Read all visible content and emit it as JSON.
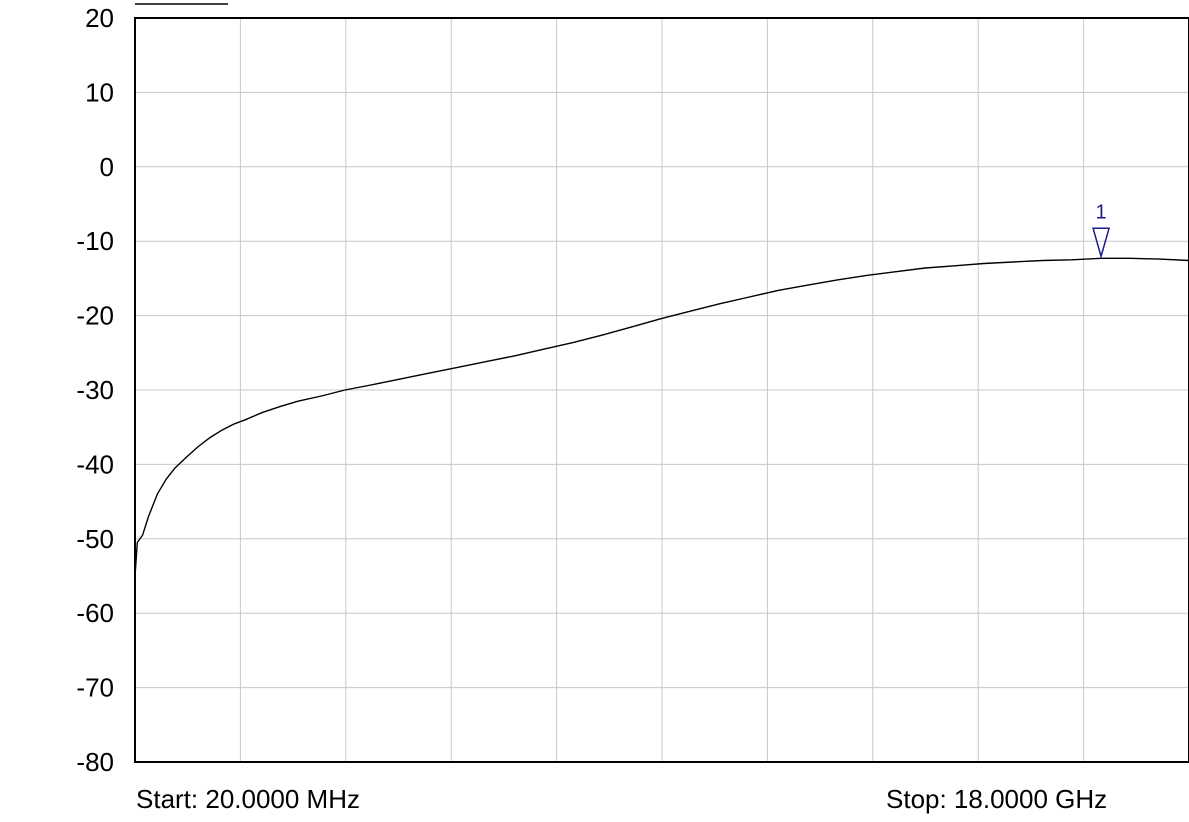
{
  "chart_data": {
    "type": "line",
    "title": "",
    "xlabel": "",
    "ylabel": "",
    "x_unit": "GHz",
    "x_range": [
      0.02,
      18.0
    ],
    "ylim": [
      -80,
      20
    ],
    "y_ticks": [
      "20",
      "10",
      "0",
      "-10",
      "-20",
      "-30",
      "-40",
      "-50",
      "-60",
      "-70",
      "-80"
    ],
    "x_divisions": 10,
    "grid": true,
    "start_label": "Start: 20.0000 MHz",
    "stop_label": "Stop: 18.0000 GHz",
    "series": [
      {
        "color": "#000000",
        "points": [
          [
            0.02,
            -55.0
          ],
          [
            0.06,
            -50.5
          ],
          [
            0.15,
            -49.5
          ],
          [
            0.25,
            -47.0
          ],
          [
            0.4,
            -44.0
          ],
          [
            0.55,
            -42.0
          ],
          [
            0.7,
            -40.5
          ],
          [
            0.9,
            -39.0
          ],
          [
            1.1,
            -37.6
          ],
          [
            1.3,
            -36.4
          ],
          [
            1.5,
            -35.4
          ],
          [
            1.7,
            -34.6
          ],
          [
            1.9,
            -34.0
          ],
          [
            2.2,
            -33.0
          ],
          [
            2.5,
            -32.2
          ],
          [
            2.8,
            -31.5
          ],
          [
            3.2,
            -30.8
          ],
          [
            3.6,
            -30.0
          ],
          [
            4.0,
            -29.4
          ],
          [
            4.5,
            -28.6
          ],
          [
            5.0,
            -27.8
          ],
          [
            5.5,
            -27.0
          ],
          [
            6.0,
            -26.2
          ],
          [
            6.5,
            -25.4
          ],
          [
            7.0,
            -24.5
          ],
          [
            7.5,
            -23.6
          ],
          [
            8.0,
            -22.6
          ],
          [
            8.5,
            -21.5
          ],
          [
            9.0,
            -20.4
          ],
          [
            9.5,
            -19.4
          ],
          [
            10.0,
            -18.4
          ],
          [
            10.5,
            -17.5
          ],
          [
            11.0,
            -16.6
          ],
          [
            11.5,
            -15.9
          ],
          [
            12.0,
            -15.2
          ],
          [
            12.5,
            -14.6
          ],
          [
            13.0,
            -14.1
          ],
          [
            13.5,
            -13.6
          ],
          [
            14.0,
            -13.3
          ],
          [
            14.5,
            -13.0
          ],
          [
            15.0,
            -12.8
          ],
          [
            15.5,
            -12.6
          ],
          [
            16.0,
            -12.5
          ],
          [
            16.5,
            -12.3
          ],
          [
            17.0,
            -12.3
          ],
          [
            17.5,
            -12.4
          ],
          [
            18.0,
            -12.6
          ]
        ]
      }
    ],
    "markers": [
      {
        "label": "1",
        "x": 16.5,
        "y": -12.3,
        "color": "#1a1a8c"
      }
    ]
  }
}
